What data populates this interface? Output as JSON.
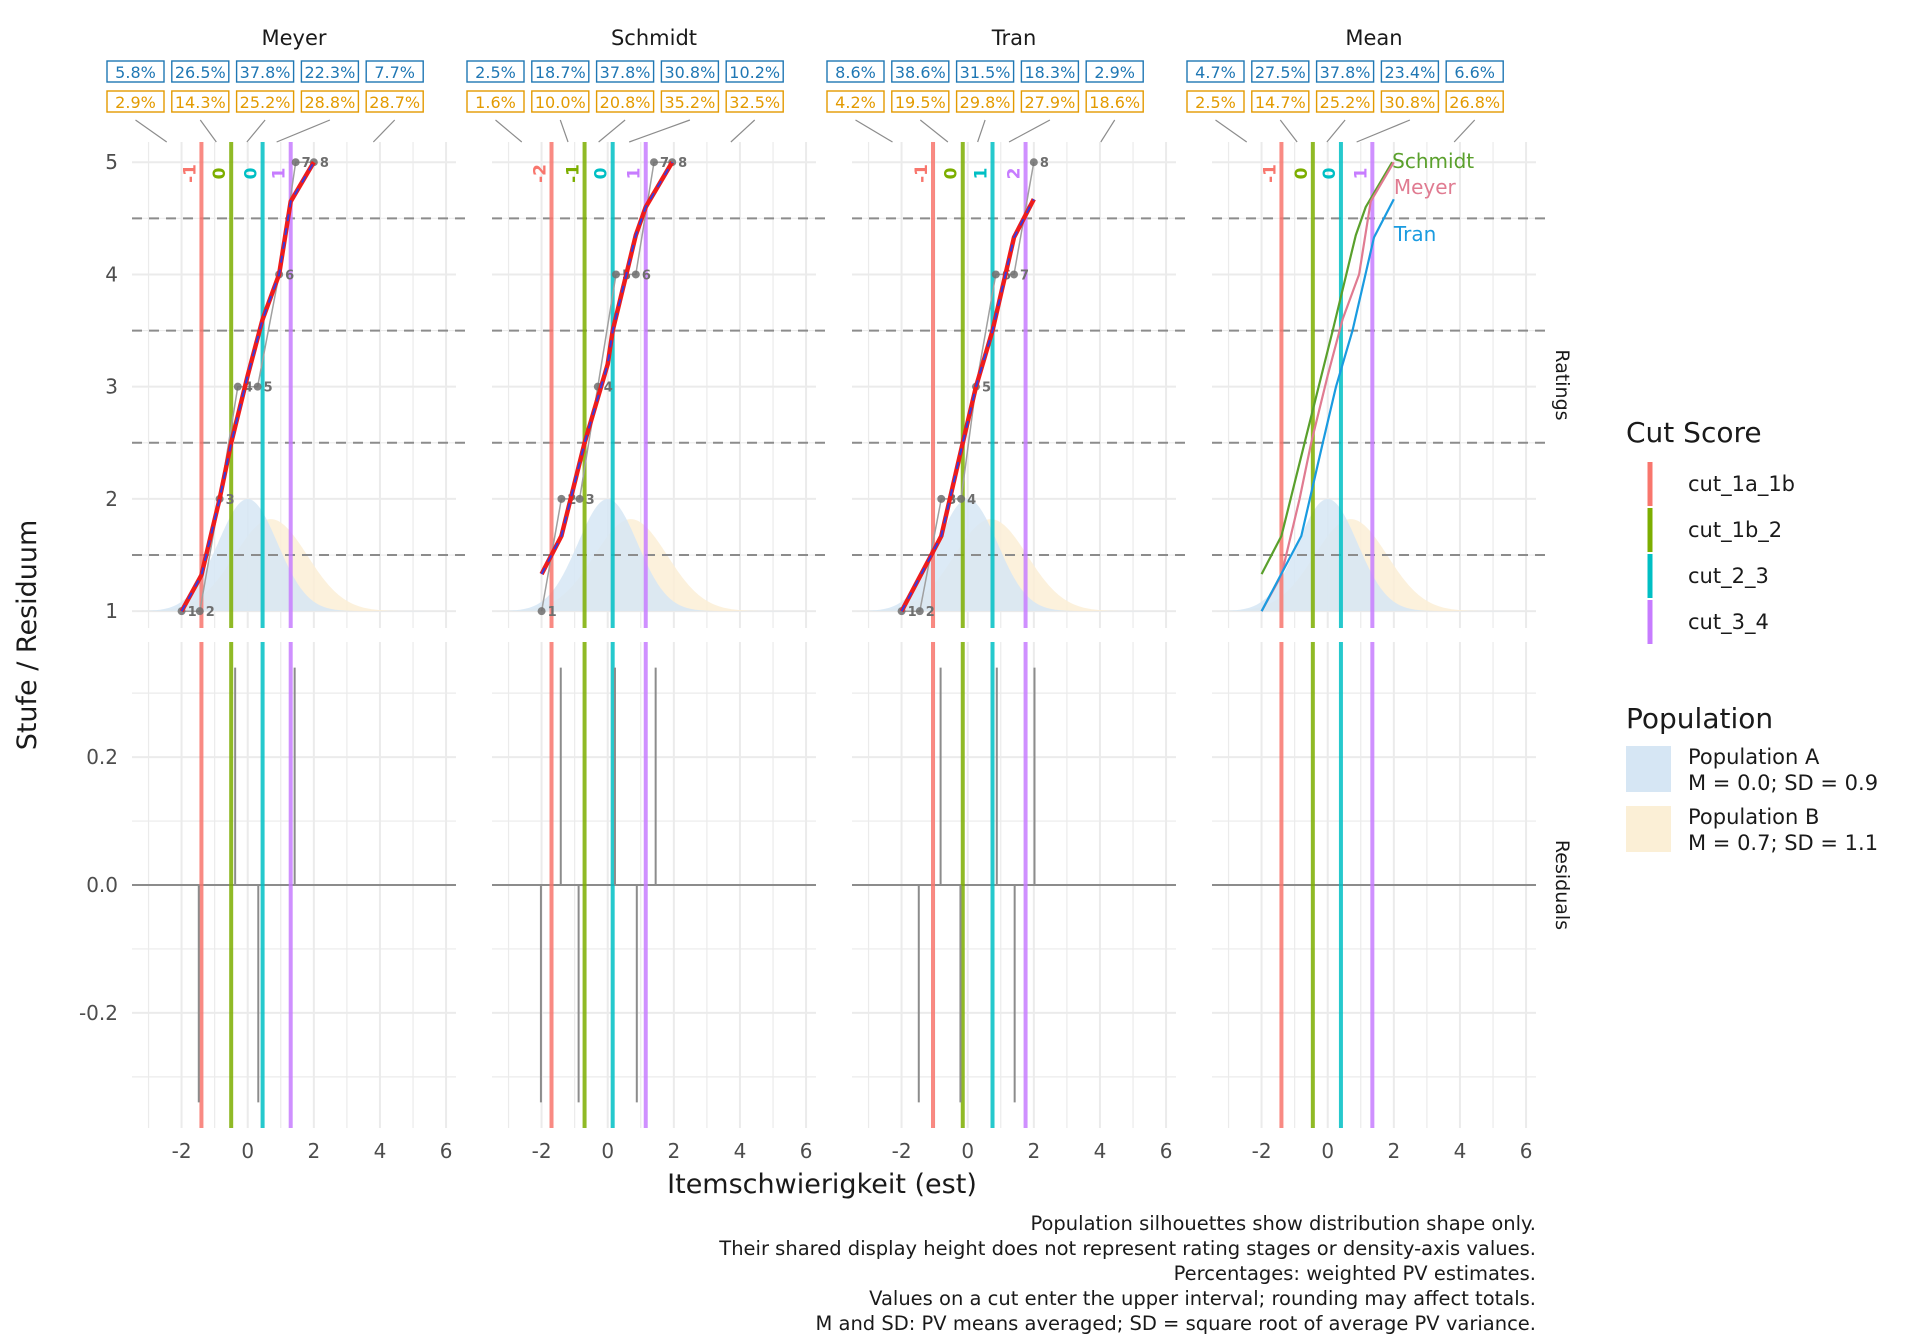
{
  "chart_data": {
    "type": "line",
    "facets": [
      "Meyer",
      "Schmidt",
      "Tran",
      "Mean"
    ],
    "row_strips": [
      "Ratings",
      "Residuals"
    ],
    "xlabel": "Itemschwierigkeit (est)",
    "ylabel": "Stufe / Residuum",
    "xlim": [
      -3.5,
      6.3
    ],
    "x_ticks": [
      -2,
      0,
      2,
      4,
      6
    ],
    "x_tick_labels": [
      "-2",
      "0",
      "2",
      "4",
      "6"
    ],
    "ratings_ylim": [
      0.85,
      5.18
    ],
    "ratings_y_ticks": [
      1,
      2,
      3,
      4,
      5
    ],
    "ratings_y_tick_labels": [
      "1",
      "2",
      "3",
      "4",
      "5"
    ],
    "residuals_ylim": [
      -0.38,
      0.38
    ],
    "residuals_y_ticks": [
      -0.2,
      0,
      0.2
    ],
    "residuals_y_tick_labels": [
      "-0.2",
      "0.0",
      "0.2"
    ],
    "boundaries": [
      1.5,
      2.5,
      3.5,
      4.5
    ],
    "cut_score_legend": {
      "title": "Cut Score",
      "items": [
        {
          "name": "cut_1a_1b",
          "color": "#F8766D"
        },
        {
          "name": "cut_1b_2",
          "color": "#7CAE00"
        },
        {
          "name": "cut_2_3",
          "color": "#00BFC4"
        },
        {
          "name": "cut_3_4",
          "color": "#C77CFF"
        }
      ]
    },
    "population_legend": {
      "title": "Population",
      "items": [
        {
          "name": "Population A",
          "stats": "M = 0.0; SD = 0.9",
          "color": "#d6e6f4",
          "mean": 0.0,
          "sd": 0.9
        },
        {
          "name": "Population B",
          "stats": "M = 0.7; SD = 1.1",
          "color": "#fbefd6",
          "mean": 0.7,
          "sd": 1.1
        }
      ]
    },
    "panels": [
      {
        "rater": "Meyer",
        "cuts": [
          -1.4,
          -0.5,
          0.45,
          1.3
        ],
        "cut_labels": [
          "-1",
          "0",
          "0",
          "1"
        ],
        "pct_A": [
          "5.8%",
          "26.5%",
          "37.8%",
          "22.3%",
          "7.7%"
        ],
        "pct_B": [
          "2.9%",
          "14.3%",
          "25.2%",
          "28.8%",
          "28.7%"
        ],
        "items": [
          {
            "id": "1",
            "est": -2.0,
            "rating": 1
          },
          {
            "id": "2",
            "est": -1.45,
            "rating": 1
          },
          {
            "id": "3",
            "est": -0.85,
            "rating": 2
          },
          {
            "id": "4",
            "est": -0.3,
            "rating": 3
          },
          {
            "id": "5",
            "est": 0.3,
            "rating": 3
          },
          {
            "id": "6",
            "est": 0.95,
            "rating": 4
          },
          {
            "id": "7",
            "est": 1.45,
            "rating": 5
          },
          {
            "id": "8",
            "est": 2.0,
            "rating": 5
          }
        ],
        "fit_x": [
          -2.0,
          -1.4,
          -0.85,
          -0.5,
          0.0,
          0.45,
          0.95,
          1.3,
          2.0
        ],
        "fit_y": [
          1.0,
          1.32,
          2.0,
          2.5,
          3.1,
          3.6,
          4.0,
          4.65,
          5.0
        ],
        "residuals": [
          {
            "x": -1.48,
            "value": -0.34
          },
          {
            "x": -0.38,
            "value": 0.34
          },
          {
            "x": 0.32,
            "value": -0.34
          },
          {
            "x": 1.42,
            "value": 0.34
          }
        ]
      },
      {
        "rater": "Schmidt",
        "cuts": [
          -1.7,
          -0.7,
          0.15,
          1.15
        ],
        "cut_labels": [
          "-2",
          "-1",
          "0",
          "1"
        ],
        "pct_A": [
          "2.5%",
          "18.7%",
          "37.8%",
          "30.8%",
          "10.2%"
        ],
        "pct_B": [
          "1.6%",
          "10.0%",
          "20.8%",
          "35.2%",
          "32.5%"
        ],
        "items": [
          {
            "id": "1",
            "est": -2.0,
            "rating": 1
          },
          {
            "id": "2",
            "est": -1.4,
            "rating": 2
          },
          {
            "id": "3",
            "est": -0.85,
            "rating": 2
          },
          {
            "id": "4",
            "est": -0.3,
            "rating": 3
          },
          {
            "id": "5",
            "est": 0.25,
            "rating": 4
          },
          {
            "id": "6",
            "est": 0.85,
            "rating": 4
          },
          {
            "id": "7",
            "est": 1.4,
            "rating": 5
          },
          {
            "id": "8",
            "est": 1.95,
            "rating": 5
          }
        ],
        "fit_x": [
          -2.0,
          -1.4,
          -0.7,
          0.0,
          0.15,
          0.85,
          1.15,
          1.95
        ],
        "fit_y": [
          1.33,
          1.67,
          2.5,
          3.2,
          3.5,
          4.35,
          4.6,
          5.0
        ],
        "residuals": [
          {
            "x": -2.02,
            "value": -0.34
          },
          {
            "x": -1.42,
            "value": 0.34
          },
          {
            "x": -0.88,
            "value": -0.34
          },
          {
            "x": 0.22,
            "value": 0.34
          },
          {
            "x": 0.88,
            "value": -0.34
          },
          {
            "x": 1.45,
            "value": 0.34
          }
        ]
      },
      {
        "rater": "Tran",
        "cuts": [
          -1.05,
          -0.15,
          0.75,
          1.75
        ],
        "cut_labels": [
          "-1",
          "0",
          "1",
          "2"
        ],
        "pct_A": [
          "8.6%",
          "38.6%",
          "31.5%",
          "18.3%",
          "2.9%"
        ],
        "pct_B": [
          "4.2%",
          "19.5%",
          "29.8%",
          "27.9%",
          "18.6%"
        ],
        "items": [
          {
            "id": "1",
            "est": -2.0,
            "rating": 1
          },
          {
            "id": "2",
            "est": -1.45,
            "rating": 1
          },
          {
            "id": "3",
            "est": -0.8,
            "rating": 2
          },
          {
            "id": "4",
            "est": -0.2,
            "rating": 2
          },
          {
            "id": "5",
            "est": 0.25,
            "rating": 3
          },
          {
            "id": "6",
            "est": 0.85,
            "rating": 4
          },
          {
            "id": "7",
            "est": 1.4,
            "rating": 4
          },
          {
            "id": "8",
            "est": 2.0,
            "rating": 5
          }
        ],
        "fit_x": [
          -2.0,
          -1.1,
          -0.8,
          -0.15,
          0.25,
          0.75,
          1.4,
          2.0
        ],
        "fit_y": [
          1.0,
          1.5,
          1.67,
          2.5,
          3.0,
          3.5,
          4.33,
          4.67
        ],
        "residuals": [
          {
            "x": -1.48,
            "value": -0.34
          },
          {
            "x": -0.82,
            "value": 0.34
          },
          {
            "x": -0.22,
            "value": -0.34
          },
          {
            "x": 0.88,
            "value": 0.34
          },
          {
            "x": 1.42,
            "value": -0.34
          },
          {
            "x": 2.02,
            "value": 0.34
          }
        ]
      },
      {
        "rater": "Mean",
        "cuts": [
          -1.4,
          -0.45,
          0.4,
          1.35
        ],
        "cut_labels": [
          "-1",
          "0",
          "0",
          "1"
        ],
        "pct_A": [
          "4.7%",
          "27.5%",
          "37.8%",
          "23.4%",
          "6.6%"
        ],
        "pct_B": [
          "2.5%",
          "14.7%",
          "25.2%",
          "30.8%",
          "26.8%"
        ],
        "items": [],
        "fit_x": [],
        "fit_y": [],
        "residuals": [],
        "mean_lines": [
          {
            "name": "Schmidt",
            "color": "#5aa02c",
            "x": [
              -2.0,
              -1.4,
              -0.7,
              0.15,
              0.85,
              1.15,
              1.95
            ],
            "y": [
              1.33,
              1.67,
              2.5,
              3.5,
              4.35,
              4.6,
              5.0
            ]
          },
          {
            "name": "Meyer",
            "color": "#e07b91",
            "x": [
              -2.0,
              -1.4,
              -0.85,
              -0.5,
              0.0,
              0.45,
              0.95,
              1.3,
              2.0
            ],
            "y": [
              1.0,
              1.32,
              2.0,
              2.5,
              3.1,
              3.6,
              4.0,
              4.65,
              5.0
            ]
          },
          {
            "name": "Tran",
            "color": "#1a9be0",
            "x": [
              -2.0,
              -1.1,
              -0.8,
              -0.15,
              0.25,
              0.75,
              1.4,
              2.0
            ],
            "y": [
              1.0,
              1.5,
              1.67,
              2.5,
              3.0,
              3.5,
              4.33,
              4.67
            ]
          }
        ]
      }
    ],
    "caption": [
      "Population silhouettes show distribution shape only.",
      "Their shared display height does not represent rating stages or density-axis values.",
      "Percentages: weighted PV estimates.",
      "Values on a cut enter the upper interval; rounding may affect totals.",
      "M and SD: PV means averaged; SD = square root of average PV variance."
    ]
  }
}
